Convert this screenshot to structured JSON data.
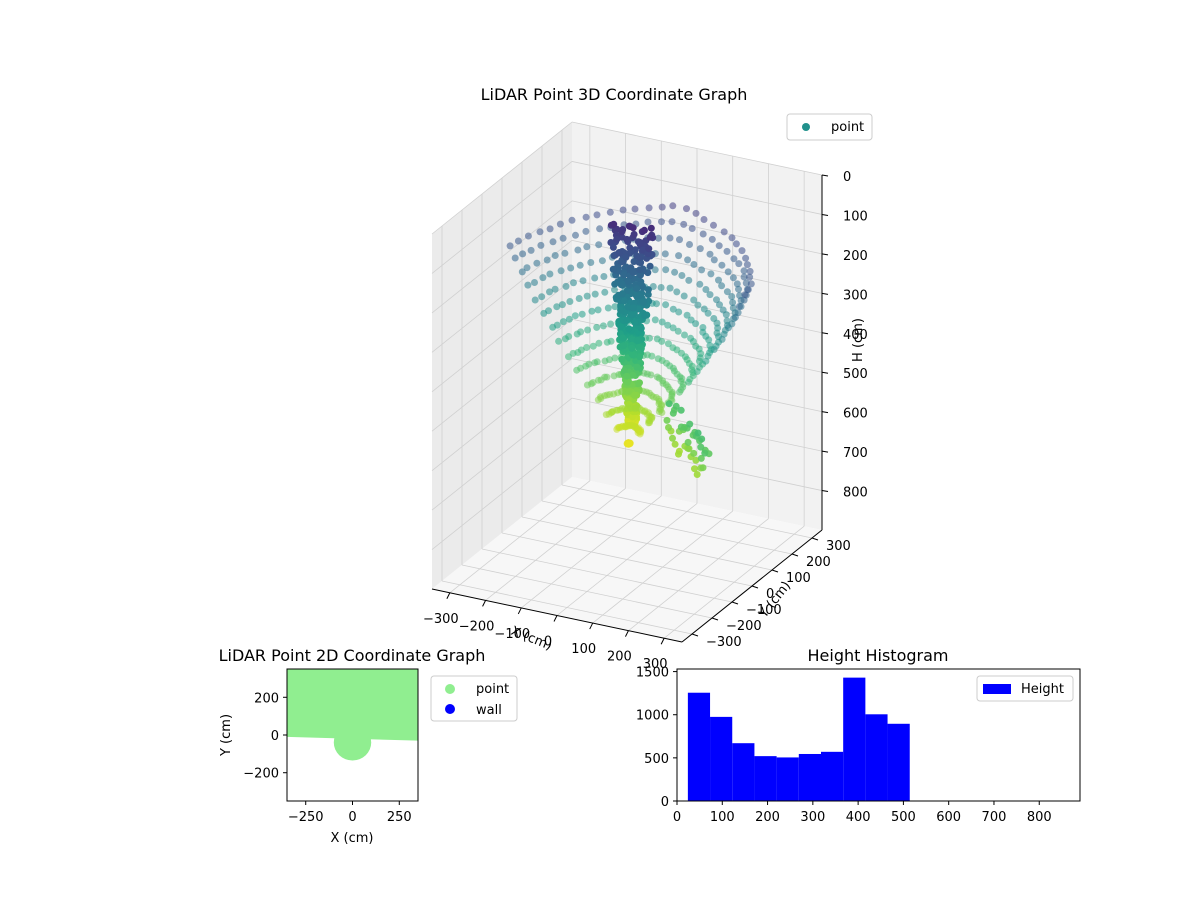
{
  "colors": {
    "point_2d": "#90ee90",
    "wall_2d": "#0000ff",
    "histogram": "#0000ff",
    "legend_point_3d": "#21918c",
    "colormap": "viridis"
  },
  "chart_data": [
    {
      "type": "scatter3d",
      "title": "LiDAR Point 3D Coordinate Graph",
      "xlabel": "X (cm)",
      "ylabel": "Y (cm)",
      "zlabel": "H (cm)",
      "xlim": [
        -350,
        350
      ],
      "ylim": [
        -350,
        350
      ],
      "zlim": [
        900,
        0
      ],
      "z_inverted": true,
      "color_by": "height",
      "colormap": "viridis",
      "xticks": [
        "−300",
        "−200",
        "−100",
        "0",
        "100",
        "200",
        "300"
      ],
      "yticks": [
        "−300",
        "−200",
        "−100",
        "0",
        "100",
        "200",
        "300"
      ],
      "zticks": [
        "0",
        "100",
        "200",
        "300",
        "400",
        "500",
        "600",
        "700",
        "800"
      ],
      "legend": {
        "entries": [
          "point"
        ],
        "position": "upper right"
      },
      "grid": true,
      "series": [
        {
          "name": "point",
          "description_of_shape": "curtain of points around a cone apex near origin",
          "sample_points": [
            {
              "x": 0,
              "y": 0,
              "h": 590
            },
            {
              "x": -50,
              "y": 20,
              "h": 80
            },
            {
              "x": 40,
              "y": 30,
              "h": 90
            },
            {
              "x": 0,
              "y": 150,
              "h": 100
            },
            {
              "x": -300,
              "y": 100,
              "h": 150
            },
            {
              "x": 300,
              "y": -100,
              "h": 480
            }
          ]
        }
      ]
    },
    {
      "type": "scatter",
      "title": "LiDAR Point 2D Coordinate Graph",
      "xlabel": "X (cm)",
      "ylabel": "Y (cm)",
      "xlim": [
        -350,
        350
      ],
      "ylim": [
        -350,
        350
      ],
      "xticks": [
        "−250",
        "0",
        "250"
      ],
      "yticks": [
        "200",
        "0",
        "−200"
      ],
      "legend": {
        "entries": [
          "point",
          "wall"
        ],
        "position": "outside right"
      },
      "series": [
        {
          "name": "point",
          "region": {
            "x": [
              -350,
              350
            ],
            "y_top": 350,
            "y_bottom_left": -10,
            "y_bottom_right": -30,
            "bulge_center": [
              0,
              -40
            ],
            "bulge_radius": 100
          }
        },
        {
          "name": "wall",
          "points": []
        }
      ]
    },
    {
      "type": "bar",
      "title": "Height Histogram",
      "xlabel": "",
      "ylabel": "",
      "xlim": [
        0,
        890
      ],
      "ylim": [
        0,
        1530
      ],
      "xticks": [
        "0",
        "100",
        "200",
        "300",
        "400",
        "500",
        "600",
        "700",
        "800"
      ],
      "yticks": [
        "0",
        "500",
        "1000",
        "1500"
      ],
      "legend": {
        "entries": [
          "Height"
        ],
        "position": "upper right"
      },
      "bin_edges": [
        24,
        73,
        122,
        171,
        220,
        269,
        318,
        367,
        416,
        465,
        514
      ],
      "series": [
        {
          "name": "Height",
          "values": [
            1255,
            975,
            670,
            520,
            505,
            545,
            570,
            1430,
            1005,
            895
          ]
        }
      ]
    }
  ]
}
